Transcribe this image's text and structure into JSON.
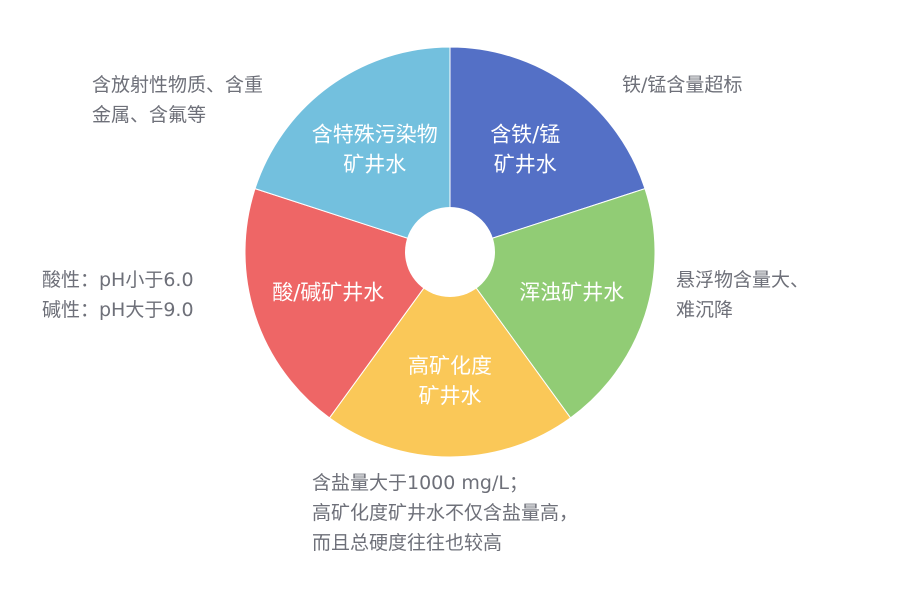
{
  "chart_data": {
    "type": "pie",
    "donut": true,
    "segments": [
      {
        "label_lines": [
          "含铁/锰",
          "矿井水"
        ],
        "value": 1,
        "color": "#5470c6",
        "note": "铁/锰含量超标"
      },
      {
        "label_lines": [
          "浑浊矿井水"
        ],
        "value": 1,
        "color": "#91cc75",
        "note": "悬浮物含量大、\n难沉降"
      },
      {
        "label_lines": [
          "高矿化度",
          "矿井水"
        ],
        "value": 1,
        "color": "#fac858",
        "note": "含盐量大于1000 mg/L；\n高矿化度矿井水不仅含盐量高，\n而且总硬度往往也较高"
      },
      {
        "label_lines": [
          "酸/碱矿井水"
        ],
        "value": 1,
        "color": "#ee6666",
        "note": "酸性：pH小于6.0\n碱性：pH大于9.0"
      },
      {
        "label_lines": [
          "含特殊污染物",
          "矿井水"
        ],
        "value": 1,
        "color": "#73c0de",
        "note": "含放射性物质、含重\n金属、含氟等"
      }
    ]
  }
}
